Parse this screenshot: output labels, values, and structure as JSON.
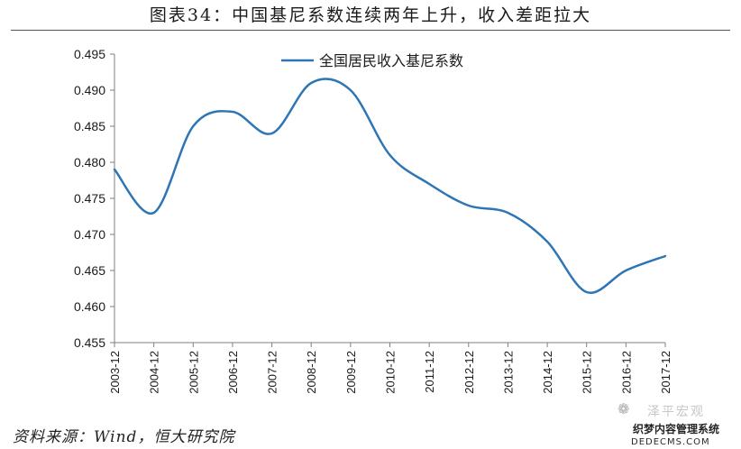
{
  "title": "图表34：中国基尼系数连续两年上升，收入差距拉大",
  "source": "资料来源：Wind，恒大研究院",
  "watermark": {
    "line1": "泽平宏观",
    "line2": "织梦内容管理系统",
    "line3": "DEDECMS.COM"
  },
  "colors": {
    "series": "#2e75b6",
    "axis": "#7f7f7f",
    "text": "#1a1a1a"
  },
  "chart_data": {
    "type": "line",
    "title": "",
    "xlabel": "",
    "ylabel": "",
    "categories": [
      "2003-12",
      "2004-12",
      "2005-12",
      "2006-12",
      "2007-12",
      "2008-12",
      "2009-12",
      "2010-12",
      "2011-12",
      "2012-12",
      "2013-12",
      "2014-12",
      "2015-12",
      "2016-12",
      "2017-12"
    ],
    "series": [
      {
        "name": "全国居民收入基尼系数",
        "values": [
          0.479,
          0.473,
          0.485,
          0.487,
          0.484,
          0.491,
          0.49,
          0.481,
          0.477,
          0.474,
          0.473,
          0.469,
          0.462,
          0.465,
          0.467
        ]
      }
    ],
    "ylim": [
      0.455,
      0.495
    ],
    "yticks": [
      "0.455",
      "0.460",
      "0.465",
      "0.470",
      "0.475",
      "0.480",
      "0.485",
      "0.490",
      "0.495"
    ],
    "grid": false,
    "legend": "top-center",
    "smooth": true
  }
}
